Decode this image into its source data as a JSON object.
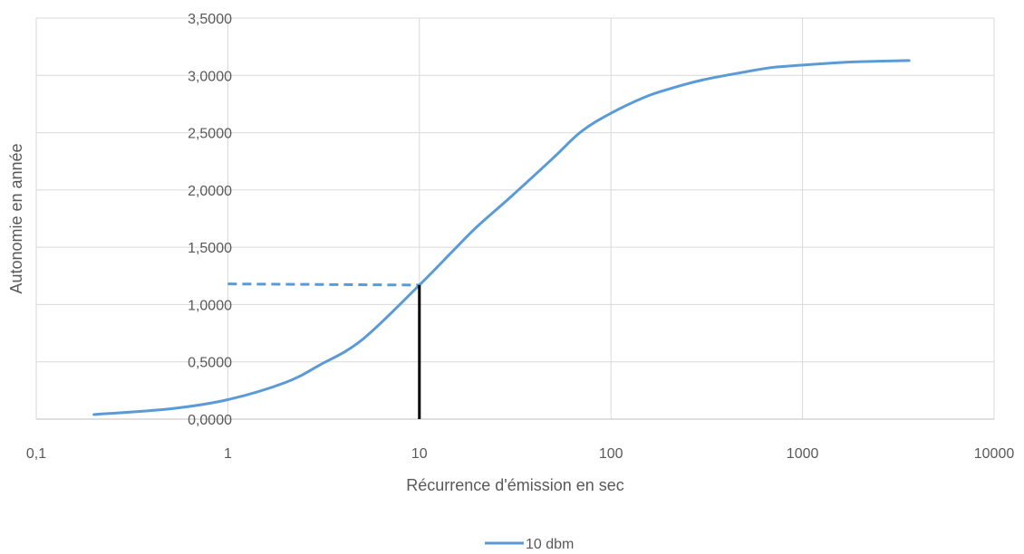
{
  "chart_data": {
    "type": "line",
    "title": "",
    "xlabel": "Récurrence d'émission en sec",
    "ylabel": "Autonomie en année",
    "x_scale": "log",
    "xlim": [
      0.1,
      10000
    ],
    "ylim": [
      0,
      3.5
    ],
    "x_ticks": [
      0.1,
      1,
      10,
      100,
      1000,
      10000
    ],
    "x_tick_labels": [
      "0,1",
      "1",
      "10",
      "100",
      "1000",
      "10000"
    ],
    "y_ticks": [
      0,
      0.5,
      1,
      1.5,
      2,
      2.5,
      3,
      3.5
    ],
    "y_tick_labels": [
      "0,0000",
      "0,5000",
      "1,0000",
      "1,5000",
      "2,0000",
      "2,5000",
      "3,0000",
      "3,5000"
    ],
    "grid": true,
    "legend_position": "bottom",
    "series": [
      {
        "name": "10 dbm",
        "color": "#5b9bd5",
        "x": [
          0.2,
          0.5,
          1,
          2,
          3,
          5,
          10,
          15,
          20,
          30,
          50,
          70,
          100,
          150,
          200,
          300,
          500,
          700,
          1000,
          1500,
          2000,
          3600
        ],
        "y": [
          0.04,
          0.09,
          0.17,
          0.32,
          0.47,
          0.69,
          1.17,
          1.47,
          1.68,
          1.94,
          2.28,
          2.51,
          2.67,
          2.81,
          2.88,
          2.96,
          3.03,
          3.07,
          3.09,
          3.11,
          3.12,
          3.13
        ]
      }
    ],
    "annotations": [
      {
        "kind": "dashed-horizontal",
        "color": "#5b9bd5",
        "x_from": 1,
        "x_to": 10,
        "y_from": 1.18,
        "y_to": 1.17
      },
      {
        "kind": "vertical",
        "color": "#000000",
        "x": 10,
        "y_from": 0,
        "y_to": 1.17
      }
    ]
  }
}
